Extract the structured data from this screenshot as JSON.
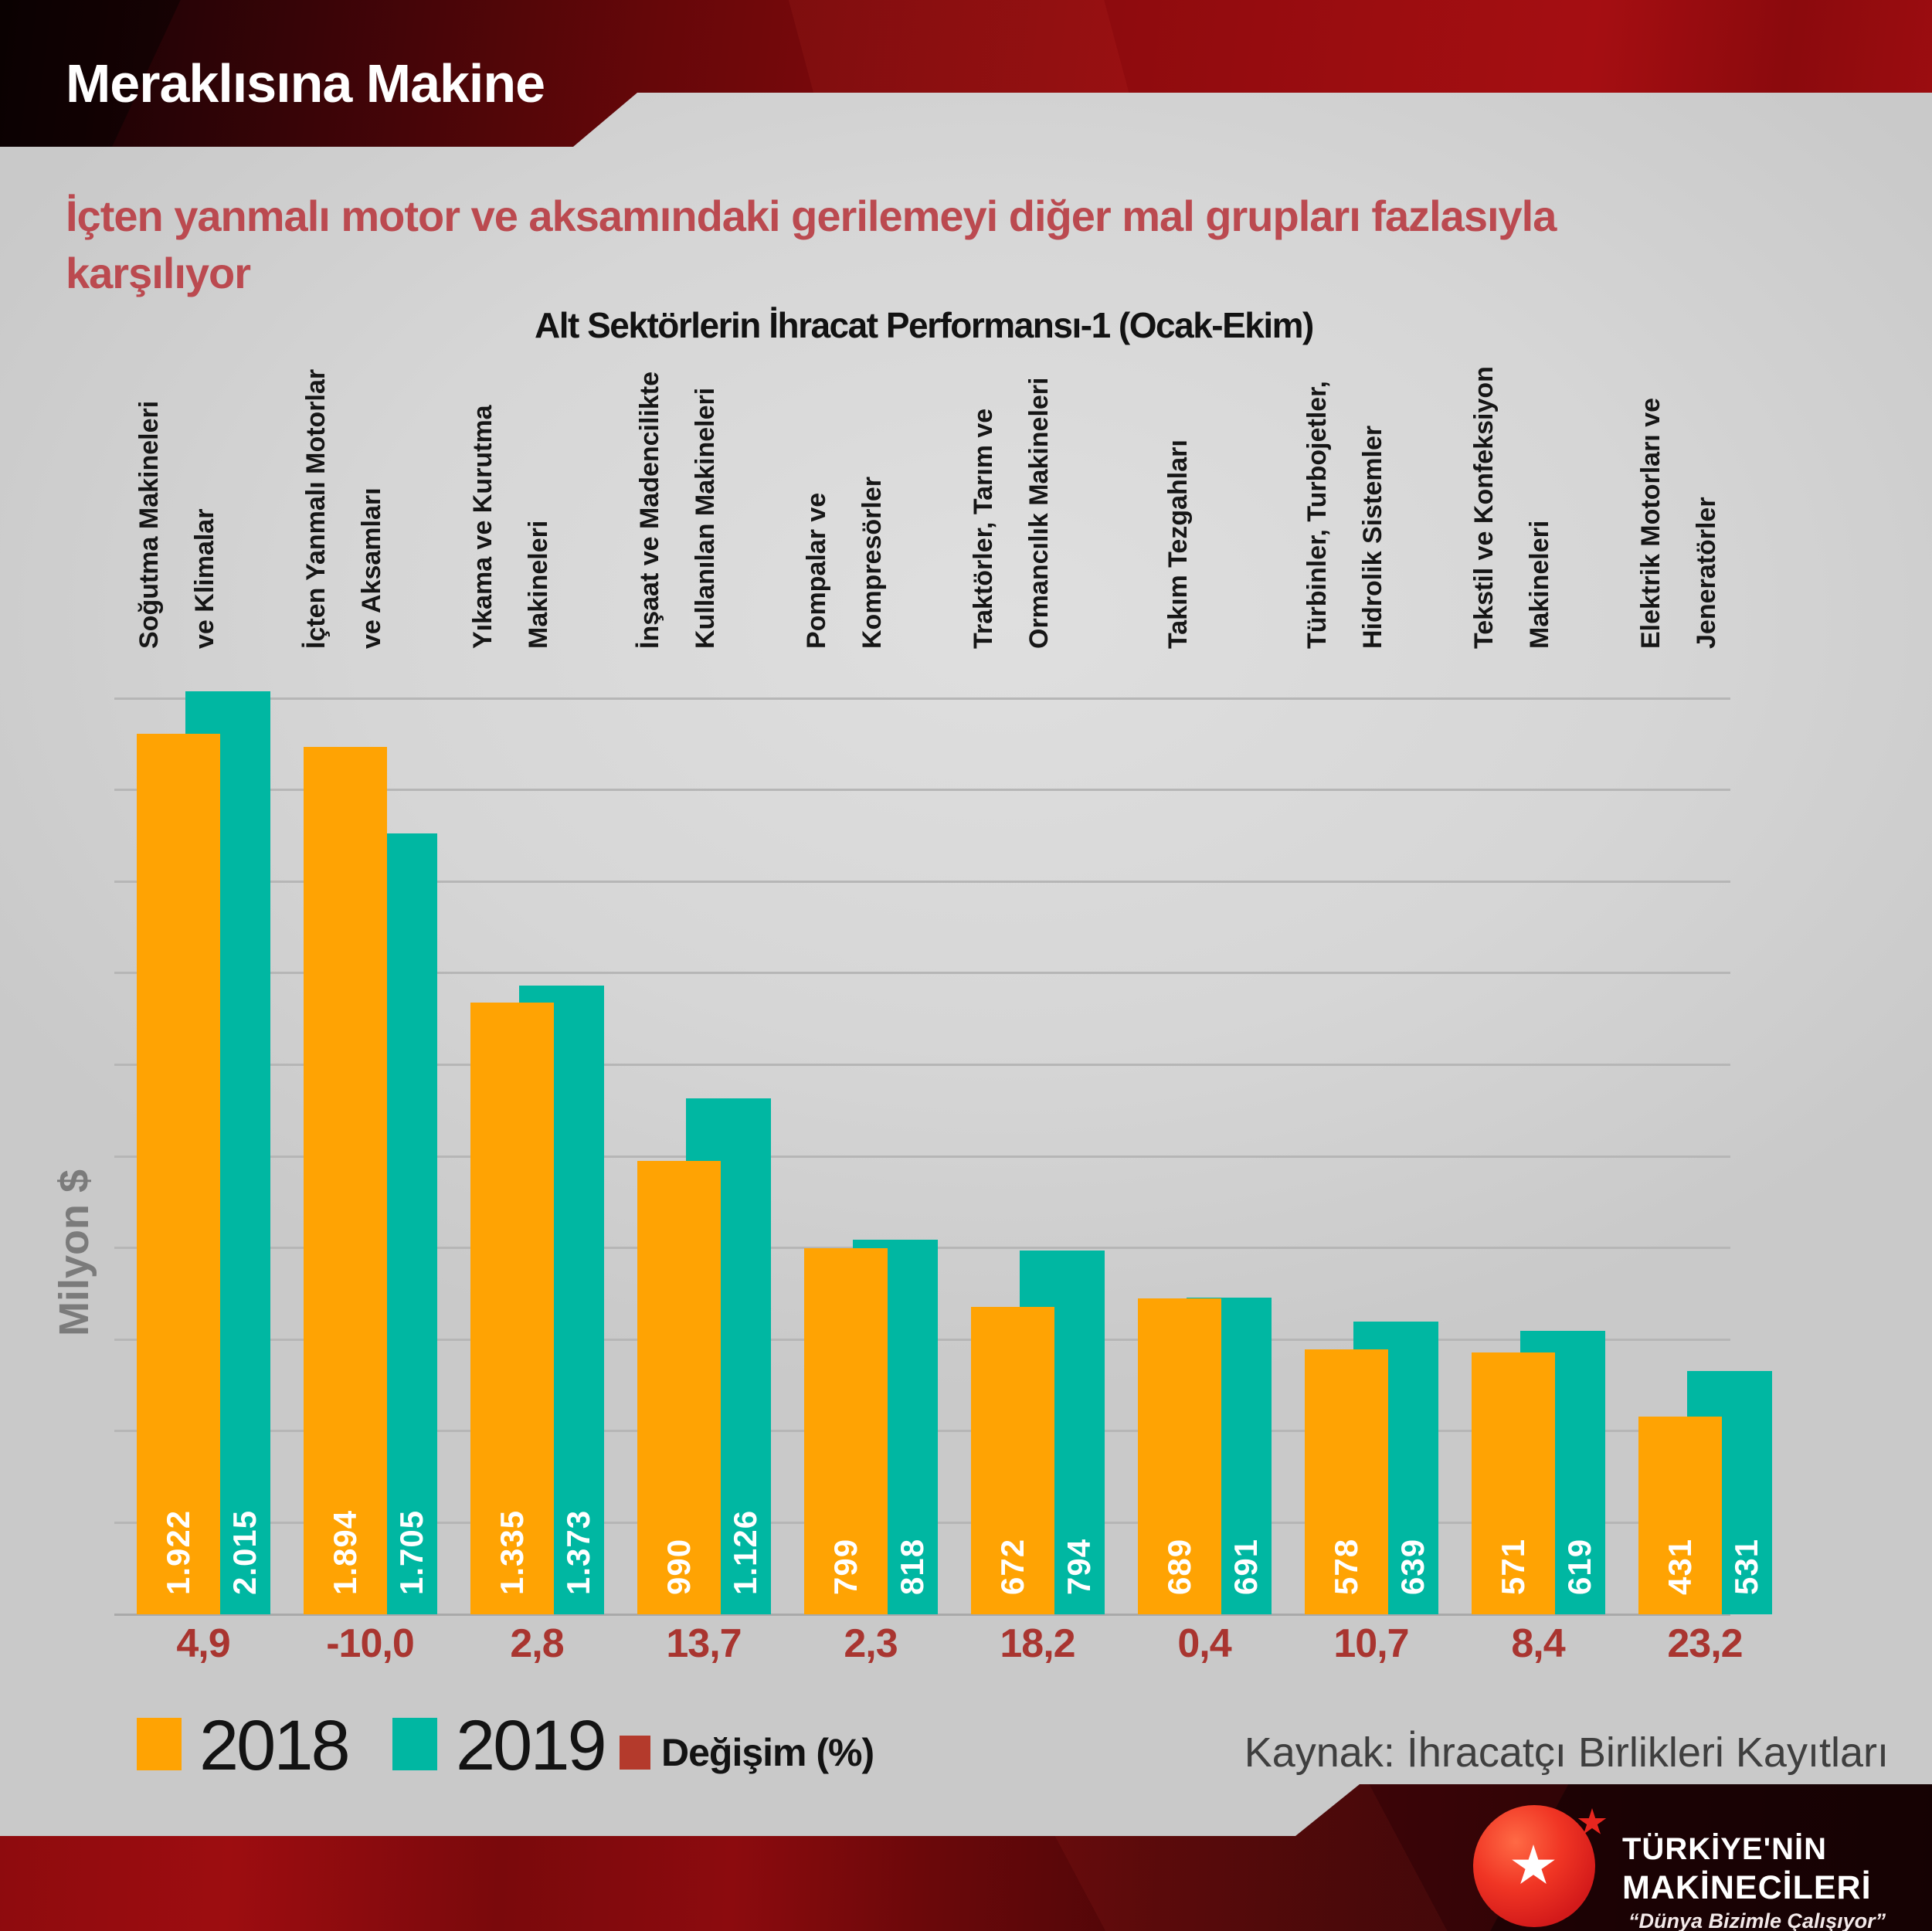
{
  "header": {
    "title": "Meraklısına Makine"
  },
  "subtitle": "İçten yanmalı motor ve aksamındaki gerilemeyi diğer mal grupları fazlasıyla\nkarşılıyor",
  "chart": {
    "title": "Alt Sektörlerin İhracat Performansı-1 (Ocak-Ekim)",
    "y_axis_label": "Milyon $"
  },
  "chart_data": {
    "type": "bar",
    "title": "Alt Sektörlerin İhracat Performansı-1 (Ocak-Ekim)",
    "xlabel": "",
    "ylabel": "Milyon $",
    "ylim": [
      0,
      2000
    ],
    "gridline_step": 200,
    "grid": true,
    "legend_position": "bottom-left",
    "categories": [
      [
        "Soğutma Makineleri",
        "ve Klimalar"
      ],
      [
        "İçten Yanmalı Motorlar",
        "ve Aksamları"
      ],
      [
        "Yıkama ve Kurutma",
        "Makineleri"
      ],
      [
        "İnşaat ve Madencilikte",
        "Kullanılan Makineleri"
      ],
      [
        "Pompalar ve",
        "Kompresörler"
      ],
      [
        "Traktörler, Tarım ve",
        "Ormancılık Makineleri"
      ],
      [
        "Takım Tezgahları"
      ],
      [
        "Türbinler, Turbojetler,",
        "Hidrolik Sistemler"
      ],
      [
        "Tekstil ve Konfeksiyon",
        "Makineleri"
      ],
      [
        "Elektrik Motorları ve",
        "Jeneratörler"
      ]
    ],
    "series": [
      {
        "name": "2018",
        "color": "#FFA303",
        "values": [
          1922,
          1894,
          1335,
          990,
          799,
          672,
          689,
          578,
          571,
          431
        ],
        "labels": [
          "1.922",
          "1.894",
          "1.335",
          "990",
          "799",
          "672",
          "689",
          "578",
          "571",
          "431"
        ]
      },
      {
        "name": "2019",
        "color": "#00B7A2",
        "values": [
          2015,
          1705,
          1373,
          1126,
          818,
          794,
          691,
          639,
          619,
          531
        ],
        "labels": [
          "2.015",
          "1.705",
          "1.373",
          "1.126",
          "818",
          "794",
          "691",
          "639",
          "619",
          "531"
        ]
      }
    ],
    "change_percent": {
      "name": "Değişim (%)",
      "color": "#AD352E",
      "values": [
        4.9,
        -10.0,
        2.8,
        13.7,
        2.3,
        18.2,
        0.4,
        10.7,
        8.4,
        23.2
      ],
      "labels": [
        "4,9",
        "-10,0",
        "2,8",
        "13,7",
        "2,3",
        "18,2",
        "0,4",
        "10,7",
        "8,4",
        "23,2"
      ]
    }
  },
  "legend": {
    "items": [
      {
        "label": "2018",
        "color": "#FFA303"
      },
      {
        "label": "2019",
        "color": "#00B7A2"
      },
      {
        "label": "Değişim (%)",
        "color": "#B43A2C"
      }
    ]
  },
  "source": "Kaynak: İhracatçı Birlikleri Kayıtları",
  "logo": {
    "line1": "TÜRKİYE'NİN",
    "line2": "MAKİNECİLERİ",
    "tagline": "“Dünya Bizimle Çalışıyor”"
  }
}
